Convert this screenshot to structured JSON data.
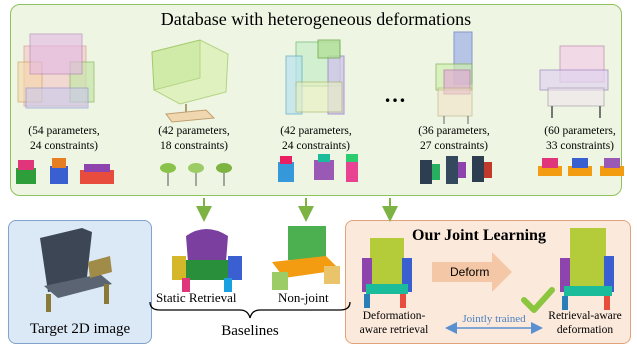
{
  "database": {
    "title": "Database with heterogeneous deformations",
    "ellipsis": "…",
    "models": [
      {
        "params": "(54 parameters,",
        "constraints": "24 constraints)"
      },
      {
        "params": "(42 parameters,",
        "constraints": "18 constraints)"
      },
      {
        "params": "(42 parameters,",
        "constraints": "24 constraints)"
      },
      {
        "params": "(36 parameters,",
        "constraints": "27 constraints)"
      },
      {
        "params": "(60 parameters,",
        "constraints": "33 constraints)"
      }
    ]
  },
  "target": {
    "label": "Target 2D image"
  },
  "baselines": {
    "static_label": "Static Retrieval",
    "nonjoint_label": "Non-joint",
    "group_label": "Baselines"
  },
  "ours": {
    "title": "Our Joint Learning",
    "deform_label": "Deform",
    "retrieval_line1": "Deformation-",
    "retrieval_line2": "aware retrieval",
    "jointly_label": "Jointly trained",
    "deformation_line1": "Retrieval-aware",
    "deformation_line2": "deformation"
  },
  "colors": {
    "db_border": "#8fc25f",
    "db_fill": "#eef6e3",
    "target_fill": "#dbe8f6",
    "ours_fill": "#fbe9dc",
    "arrow_green": "#7cb342",
    "deform_arrow": "#f4c7a6",
    "double_arrow": "#5a8fd0",
    "checkmark": "#8cc63f"
  }
}
